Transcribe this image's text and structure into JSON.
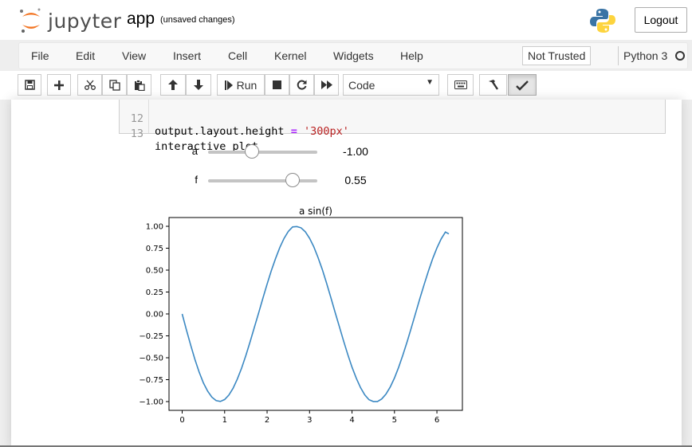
{
  "header": {
    "logo_text": "jupyter",
    "notebook_title": "app",
    "save_status": "(unsaved changes)",
    "logout_label": "Logout"
  },
  "menubar": {
    "items": [
      "File",
      "Edit",
      "View",
      "Insert",
      "Cell",
      "Kernel",
      "Widgets",
      "Help"
    ],
    "trust_status": "Not Trusted",
    "kernel_name": "Python 3"
  },
  "toolbar": {
    "buttons": [
      "save-icon",
      "plus-icon",
      "cut-icon",
      "copy-icon",
      "paste-icon",
      "arrow-up-icon",
      "arrow-down-icon",
      "run-icon",
      "stop-icon",
      "restart-icon",
      "fast-forward-icon",
      "keyboard-icon",
      "hammer-icon",
      "spellcheck-icon"
    ],
    "run_label": "Run",
    "cell_type": "Code"
  },
  "code_cell": {
    "lines": [
      {
        "number": "12",
        "prefix": "output.layout.height ",
        "op": "=",
        "space": " ",
        "string": "'300px'"
      },
      {
        "number": "13",
        "text": "interactive_plot"
      }
    ]
  },
  "widgets": {
    "sliders": [
      {
        "label": "a",
        "value": "-1.00",
        "min": -5,
        "max": 5,
        "current": -1.0
      },
      {
        "label": "f",
        "value": "0.55",
        "min": -1,
        "max": 1,
        "current": 0.55
      }
    ]
  },
  "colors": {
    "line": "#3b88c2",
    "code_bg": "#f7f7f7",
    "keyword_op": "#aa22ff",
    "string": "#ba2121"
  },
  "chart_data": {
    "type": "line",
    "title": "a sin(f)",
    "xlabel": "",
    "ylabel": "",
    "xlim": [
      -0.31,
      6.6
    ],
    "ylim": [
      -1.1,
      1.1
    ],
    "xticks": [
      0,
      1,
      2,
      3,
      4,
      5,
      6
    ],
    "yticks": [
      1.0,
      0.75,
      0.5,
      0.25,
      0.0,
      -0.25,
      -0.5,
      -0.75,
      -1.0
    ],
    "ytick_labels": [
      "1.00",
      "0.75",
      "0.50",
      "0.25",
      "0.00",
      "−0.25",
      "−0.50",
      "−0.75",
      "−1.00"
    ],
    "series": [
      {
        "color": "#3b88c2",
        "x": [
          0,
          0.1,
          0.2,
          0.3,
          0.4,
          0.5,
          0.6,
          0.7,
          0.8,
          0.9,
          1.0,
          1.1,
          1.2,
          1.3,
          1.4,
          1.5,
          1.6,
          1.7,
          1.8,
          1.9,
          2.0,
          2.1,
          2.2,
          2.3,
          2.4,
          2.5,
          2.6,
          2.7,
          2.8,
          2.9,
          3.0,
          3.1,
          3.2,
          3.3,
          3.4,
          3.5,
          3.6,
          3.7,
          3.8,
          3.9,
          4.0,
          4.1,
          4.2,
          4.3,
          4.4,
          4.5,
          4.6,
          4.7,
          4.8,
          4.9,
          5.0,
          5.1,
          5.2,
          5.3,
          5.4,
          5.5,
          5.6,
          5.7,
          5.8,
          5.9,
          6.0,
          6.1,
          6.2,
          6.28
        ],
        "y": [
          0,
          -0.181,
          -0.356,
          -0.519,
          -0.664,
          -0.786,
          -0.882,
          -0.95,
          -0.989,
          -0.998,
          -0.976,
          -0.925,
          -0.847,
          -0.743,
          -0.617,
          -0.474,
          -0.318,
          -0.155,
          0.011,
          0.177,
          0.339,
          0.494,
          0.634,
          0.758,
          0.862,
          0.941,
          0.993,
          0.997,
          0.983,
          0.937,
          0.864,
          0.766,
          0.645,
          0.506,
          0.352,
          0.19,
          0.023,
          -0.143,
          -0.306,
          -0.462,
          -0.606,
          -0.734,
          -0.84,
          -0.923,
          -0.978,
          -0.999,
          -0.999,
          -0.97,
          -0.915,
          -0.834,
          -0.731,
          -0.607,
          -0.467,
          -0.314,
          -0.153,
          0.012,
          0.177,
          0.338,
          0.49,
          0.63,
          0.752,
          0.856,
          0.935,
          0.913
        ]
      }
    ]
  }
}
